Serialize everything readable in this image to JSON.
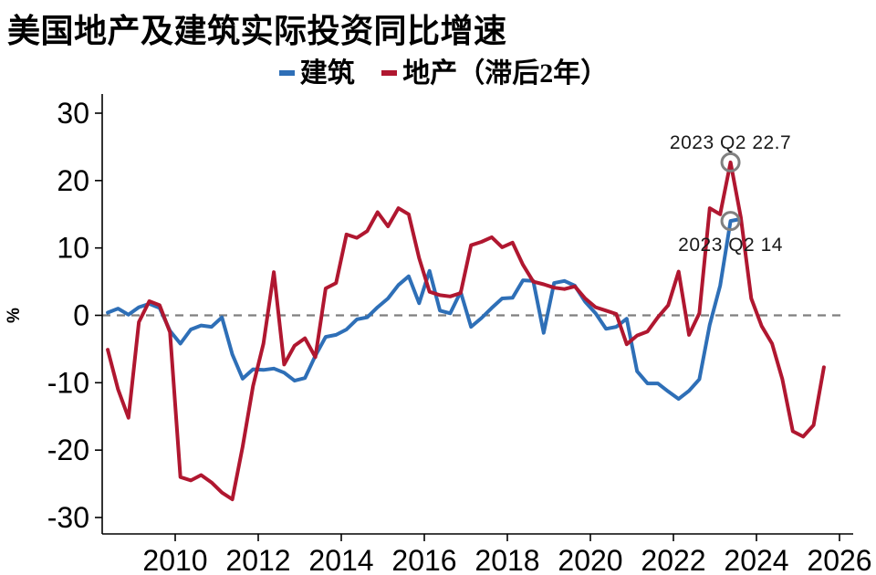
{
  "title": "美国地产及建筑实际投资同比增速",
  "legend": [
    {
      "label": "建筑",
      "color": "#2E6FB7"
    },
    {
      "label": "地产（滞后2年）",
      "color": "#B01730"
    }
  ],
  "chart_data": {
    "type": "line",
    "title": "美国地产及建筑实际投资同比增速",
    "ylabel": "%",
    "x_start": 2008.375,
    "x_step": 0.25,
    "ylim": [
      -32.5,
      33
    ],
    "xlim": [
      2008.2,
      2026.3
    ],
    "yticks": [
      30,
      20,
      10,
      0,
      -10,
      -20,
      -30
    ],
    "xticks": [
      2010,
      2012,
      2014,
      2016,
      2018,
      2020,
      2022,
      2024,
      2026
    ],
    "zero_line": {
      "style": "dashed",
      "color": "#7F7F7F"
    },
    "series": [
      {
        "name": "建筑",
        "color": "#2E6FB7",
        "values": [
          0.4,
          1.0,
          0.1,
          1.2,
          1.7,
          1.1,
          -2.3,
          -4.2,
          -2.1,
          -1.5,
          -1.7,
          -0.3,
          -5.8,
          -9.4,
          -8.0,
          -8.1,
          -7.9,
          -8.5,
          -9.7,
          -9.3,
          -6.0,
          -3.2,
          -2.9,
          -2.1,
          -0.6,
          -0.3,
          1.2,
          2.5,
          4.5,
          5.8,
          1.8,
          6.6,
          0.7,
          0.3,
          3.5,
          -1.7,
          -0.4,
          1.1,
          2.5,
          2.6,
          5.2,
          5.1,
          -2.6,
          4.8,
          5.1,
          4.4,
          2.0,
          0.3,
          -2.0,
          -1.7,
          -0.5,
          -8.3,
          -10.1,
          -10.1,
          -11.3,
          -12.4,
          -11.2,
          -9.5,
          -1.4,
          4.4,
          14,
          14.3
        ]
      },
      {
        "name": "地产（滞后2年）",
        "color": "#B01730",
        "values": [
          -5.1,
          -11.0,
          -15.2,
          -1.0,
          2.1,
          1.5,
          -2.5,
          -24.0,
          -24.5,
          -23.7,
          -24.8,
          -26.3,
          -27.3,
          -19.5,
          -10.5,
          -4.2,
          6.4,
          -7.3,
          -4.5,
          -3.4,
          -6.2,
          4.0,
          4.8,
          12.0,
          11.5,
          12.5,
          15.3,
          13.2,
          15.9,
          15.0,
          8.5,
          3.5,
          3.0,
          2.8,
          3.3,
          10.4,
          10.9,
          11.6,
          10.1,
          10.8,
          7.5,
          5.0,
          4.6,
          4.1,
          3.9,
          4.3,
          2.5,
          1.2,
          0.7,
          0.2,
          -4.3,
          -3.0,
          -2.4,
          -0.3,
          1.5,
          6.5,
          -2.9,
          0.3,
          15.9,
          15.0,
          22.7,
          14.5,
          2.5,
          -1.6,
          -4.2,
          -9.5,
          -17.2,
          -18.0,
          -16.3,
          -7.7
        ]
      }
    ],
    "annotations": [
      {
        "text": "2023 Q2 22.7",
        "t": 2023.375,
        "v": 22.7,
        "series": "地产（滞后2年）",
        "text_dy": -15
      },
      {
        "text": "2023 Q2 14",
        "t": 2023.375,
        "v": 14,
        "series": "建筑",
        "text_dy": 33
      }
    ],
    "marker_color": "#808080"
  }
}
